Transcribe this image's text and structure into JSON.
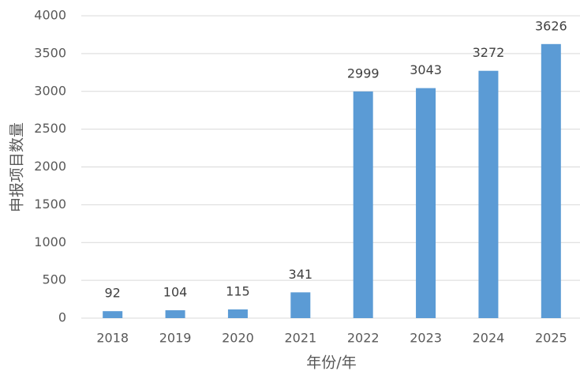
{
  "chart_data": {
    "type": "bar",
    "x_label": "年份/年",
    "y_label": "申报项目数量",
    "categories": [
      "2018",
      "2019",
      "2020",
      "2021",
      "2022",
      "2023",
      "2024",
      "2025"
    ],
    "values": [
      92,
      104,
      115,
      341,
      2999,
      3043,
      3272,
      3626
    ],
    "color": "#5b9bd5",
    "ylim": [
      0,
      4000
    ],
    "yticks": [
      0,
      500,
      1000,
      1500,
      2000,
      2500,
      3000,
      3500,
      4000
    ],
    "grid": true
  }
}
